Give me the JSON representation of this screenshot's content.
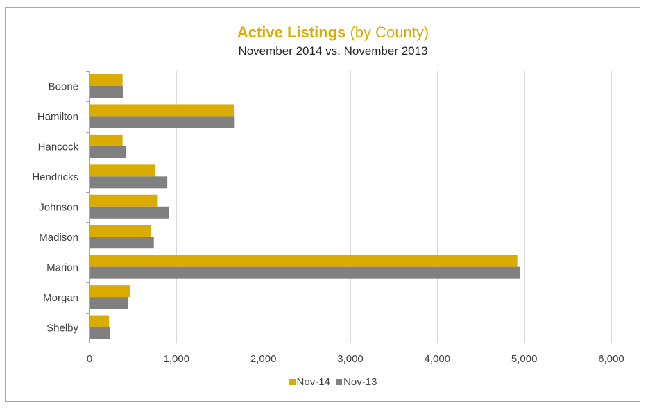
{
  "chart_data": {
    "type": "bar",
    "orientation": "horizontal",
    "title": "Active Listings",
    "title_suffix": "(by County)",
    "subtitle": "November 2014 vs. November 2013",
    "categories": [
      "Boone",
      "Hamilton",
      "Hancock",
      "Hendricks",
      "Johnson",
      "Madison",
      "Marion",
      "Morgan",
      "Shelby"
    ],
    "series": [
      {
        "name": "Nov-14",
        "color": "#dbac00",
        "values": [
          380,
          1660,
          380,
          755,
          785,
          705,
          4920,
          465,
          225
        ]
      },
      {
        "name": "Nov-13",
        "color": "#808080",
        "values": [
          385,
          1670,
          420,
          895,
          915,
          740,
          4950,
          440,
          240
        ]
      }
    ],
    "xlim": [
      0,
      6000
    ],
    "x_ticks": [
      0,
      1000,
      2000,
      3000,
      4000,
      5000,
      6000
    ],
    "x_tick_labels": [
      "0",
      "1,000",
      "2,000",
      "3,000",
      "4,000",
      "5,000",
      "6,000"
    ],
    "xlabel": "",
    "ylabel": "",
    "grid": "vertical",
    "legend_position": "bottom",
    "colors": {
      "title": "#dbac00",
      "gridline": "#d9d9d9",
      "axis": "#a6a6a6",
      "label_text": "#404040"
    }
  }
}
